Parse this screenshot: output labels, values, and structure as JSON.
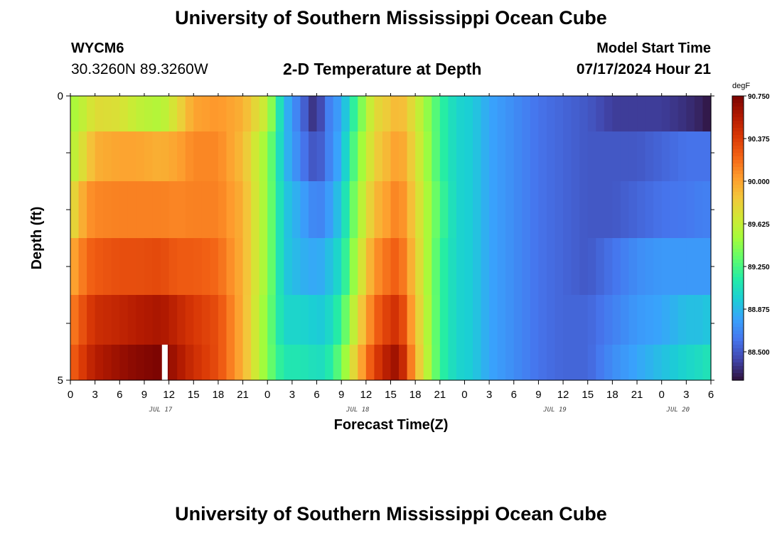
{
  "header": {
    "title": "University of Southern Mississippi Ocean Cube",
    "station_id": "WYCM6",
    "coords": "30.3260N  89.3260W",
    "plot_title": "2-D Temperature at Depth",
    "start_label": "Model Start Time",
    "start_value": "07/17/2024 Hour 21"
  },
  "footer": {
    "title": "University of Southern Mississippi Ocean Cube"
  },
  "chart_data": {
    "type": "heatmap",
    "xlabel": "Forecast Time(Z)",
    "ylabel": "Depth (ft)",
    "unit_label": "degF",
    "x_start_hour": 0,
    "x_end_hour": 78,
    "x_tick_labels": [
      "0",
      "3",
      "6",
      "9",
      "12",
      "15",
      "18",
      "21",
      "0",
      "3",
      "6",
      "9",
      "12",
      "15",
      "18",
      "21",
      "0",
      "3",
      "6",
      "9",
      "12",
      "15",
      "18",
      "21",
      "0",
      "3",
      "6"
    ],
    "date_labels": [
      {
        "label": "JUL 17",
        "hour": 11
      },
      {
        "label": "JUL 18",
        "hour": 35
      },
      {
        "label": "JUL 19",
        "hour": 59
      },
      {
        "label": "JUL 20",
        "hour": 74
      }
    ],
    "y_tick_labels": [
      "0",
      "5"
    ],
    "ylim": [
      0,
      5
    ],
    "depth_levels": [
      0.25,
      1.0,
      2.0,
      3.0,
      4.0,
      4.75
    ],
    "colorbar_ticks": [
      90.75,
      90.375,
      90.0,
      89.625,
      89.25,
      88.875,
      88.5
    ],
    "colorbar_tick_labels": [
      "90.750",
      "90.375",
      "90.000",
      "89.625",
      "89.250",
      "88.875",
      "88.500"
    ],
    "colorbar_range": [
      88.25,
      90.75
    ],
    "missing_cell": {
      "hour": 11,
      "depth_level": 5
    },
    "colormap": [
      "#30123b",
      "#4145ab",
      "#4675ed",
      "#39a2fc",
      "#1bcfd4",
      "#24eca6",
      "#61fc6c",
      "#a4fc3b",
      "#d1e834",
      "#f3c63a",
      "#fe9b2d",
      "#f36315",
      "#d93806",
      "#b11901",
      "#7a0402"
    ],
    "temperature_rows": [
      {
        "depth": 0.25,
        "hours": [
          0,
          2,
          3,
          6,
          8,
          11,
          13,
          15,
          18,
          21,
          24,
          26,
          28,
          30,
          31,
          33,
          35,
          37,
          39,
          40,
          42,
          45,
          47,
          49,
          51,
          54,
          57,
          60,
          63,
          66,
          69,
          72,
          75,
          77,
          78
        ],
        "temps": [
          89.5,
          89.65,
          89.75,
          89.72,
          89.62,
          89.55,
          89.75,
          90.0,
          90.05,
          89.95,
          89.6,
          88.9,
          88.6,
          88.3,
          88.6,
          88.8,
          89.3,
          89.75,
          89.85,
          89.95,
          89.7,
          89.2,
          89.0,
          88.95,
          88.8,
          88.7,
          88.6,
          88.55,
          88.5,
          88.4,
          88.4,
          88.4,
          88.35,
          88.3,
          88.25
        ]
      },
      {
        "depth": 1.0,
        "hours": [
          0,
          2,
          3,
          6,
          8,
          11,
          13,
          15,
          18,
          21,
          24,
          26,
          28,
          30,
          31,
          33,
          35,
          37,
          39,
          40,
          42,
          45,
          47,
          49,
          51,
          54,
          57,
          60,
          63,
          66,
          69,
          72,
          75,
          77,
          78
        ],
        "temps": [
          89.55,
          89.8,
          89.95,
          90.0,
          90.0,
          89.95,
          90.0,
          90.1,
          90.1,
          89.9,
          89.45,
          88.9,
          88.65,
          88.45,
          88.6,
          88.85,
          89.4,
          89.8,
          89.95,
          90.05,
          89.75,
          89.2,
          89.0,
          88.95,
          88.8,
          88.7,
          88.6,
          88.55,
          88.5,
          88.5,
          88.5,
          88.55,
          88.6,
          88.6,
          88.6
        ]
      },
      {
        "depth": 2.0,
        "hours": [
          0,
          2,
          3,
          6,
          8,
          11,
          13,
          15,
          18,
          21,
          24,
          26,
          28,
          30,
          31,
          33,
          35,
          37,
          39,
          40,
          42,
          45,
          47,
          49,
          51,
          54,
          57,
          60,
          63,
          66,
          69,
          72,
          75,
          77,
          78
        ],
        "temps": [
          89.7,
          90.05,
          90.1,
          90.12,
          90.12,
          90.12,
          90.1,
          90.12,
          90.12,
          89.95,
          89.45,
          88.95,
          88.8,
          88.65,
          88.7,
          88.95,
          89.5,
          89.9,
          90.05,
          90.15,
          89.8,
          89.25,
          89.0,
          88.95,
          88.8,
          88.7,
          88.6,
          88.55,
          88.5,
          88.5,
          88.55,
          88.6,
          88.62,
          88.65,
          88.65
        ]
      },
      {
        "depth": 3.0,
        "hours": [
          0,
          2,
          3,
          6,
          8,
          11,
          13,
          15,
          18,
          21,
          24,
          26,
          28,
          30,
          31,
          33,
          35,
          37,
          39,
          40,
          42,
          45,
          47,
          49,
          51,
          54,
          57,
          60,
          63,
          66,
          69,
          72,
          75,
          77,
          78
        ],
        "temps": [
          89.95,
          90.2,
          90.25,
          90.3,
          90.3,
          90.32,
          90.25,
          90.25,
          90.2,
          89.95,
          89.45,
          88.95,
          88.85,
          88.8,
          88.85,
          89.05,
          89.6,
          90.05,
          90.2,
          90.25,
          89.85,
          89.2,
          89.0,
          88.95,
          88.8,
          88.7,
          88.6,
          88.55,
          88.5,
          88.6,
          88.7,
          88.75,
          88.75,
          88.75,
          88.75
        ]
      },
      {
        "depth": 4.0,
        "hours": [
          0,
          2,
          3,
          6,
          8,
          11,
          13,
          15,
          18,
          21,
          24,
          26,
          28,
          30,
          31,
          33,
          35,
          37,
          39,
          40,
          42,
          45,
          47,
          49,
          51,
          54,
          57,
          60,
          63,
          66,
          69,
          72,
          75,
          77,
          78
        ],
        "temps": [
          90.1,
          90.35,
          90.45,
          90.5,
          90.55,
          90.6,
          90.5,
          90.4,
          90.3,
          89.95,
          89.4,
          89.0,
          89.0,
          88.95,
          88.95,
          89.2,
          89.75,
          90.2,
          90.4,
          90.45,
          89.9,
          89.2,
          89.0,
          88.95,
          88.8,
          88.7,
          88.6,
          88.55,
          88.55,
          88.65,
          88.75,
          88.8,
          88.9,
          88.9,
          88.95
        ]
      },
      {
        "depth": 4.75,
        "hours": [
          0,
          2,
          3,
          6,
          8,
          11,
          13,
          15,
          18,
          21,
          24,
          26,
          28,
          30,
          31,
          33,
          35,
          37,
          39,
          40,
          42,
          45,
          47,
          49,
          51,
          54,
          57,
          60,
          63,
          66,
          69,
          72,
          75,
          77,
          78
        ],
        "temps": [
          90.2,
          90.45,
          90.55,
          90.65,
          90.7,
          90.75,
          90.6,
          90.45,
          90.3,
          89.95,
          89.4,
          89.1,
          89.1,
          89.05,
          89.05,
          89.35,
          89.9,
          90.35,
          90.6,
          90.65,
          89.95,
          89.2,
          89.0,
          88.95,
          88.8,
          88.7,
          88.6,
          88.55,
          88.55,
          88.7,
          88.8,
          88.9,
          89.0,
          89.05,
          89.1
        ]
      }
    ]
  }
}
